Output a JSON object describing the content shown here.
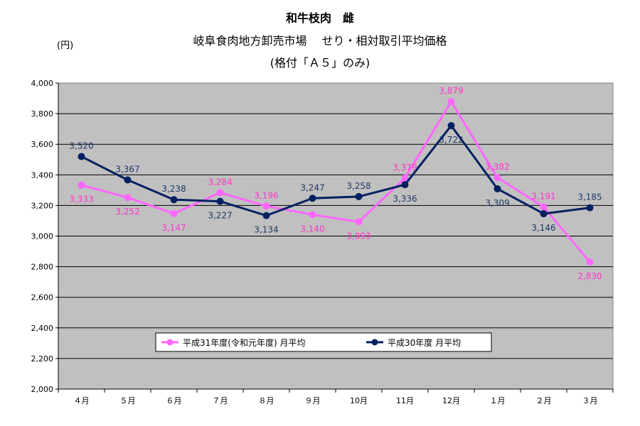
{
  "header": {
    "title": "和牛枝肉　雌",
    "subtitle": "岐阜食肉地方卸売市場　 せり・相対取引平均価格",
    "subtitle2": "(格付「Ａ５」のみ)",
    "unit": "(円)"
  },
  "chart_data": {
    "type": "line",
    "categories": [
      "４月",
      "５月",
      "６月",
      "７月",
      "８月",
      "９月",
      "10月",
      "11月",
      "12月",
      "１月",
      "２月",
      "３月"
    ],
    "ylim": [
      2000,
      4000
    ],
    "yticks": [
      2000,
      2200,
      2400,
      2600,
      2800,
      3000,
      3200,
      3400,
      3600,
      3800,
      4000
    ],
    "ytick_labels": [
      "2,000",
      "2,200",
      "2,400",
      "2,600",
      "2,800",
      "3,000",
      "3,200",
      "3,400",
      "3,600",
      "3,800",
      "4,000"
    ],
    "grid": true,
    "legend_position": "bottom-center",
    "series": [
      {
        "name": "平成31年度(令和元年度) 月平均",
        "color": "#ff66ff",
        "label_color": "#ff33cc",
        "values": [
          3333,
          3252,
          3147,
          3284,
          3196,
          3140,
          3093,
          3379,
          3879,
          3382,
          3191,
          2830
        ],
        "labels": [
          "3,333",
          "3,252",
          "3,147",
          "3,284",
          "3,196",
          "3,140",
          "3,093",
          "3,379",
          "3,879",
          "3,382",
          "3,191",
          "2,830"
        ]
      },
      {
        "name": "平成30年度 月平均",
        "color": "#002060",
        "label_color": "#1f3864",
        "values": [
          3520,
          3367,
          3238,
          3227,
          3134,
          3247,
          3258,
          3336,
          3722,
          3309,
          3146,
          3185
        ],
        "labels": [
          "3,520",
          "3,367",
          "3,238",
          "3,227",
          "3,134",
          "3,247",
          "3,258",
          "3,336",
          "3,722",
          "3,309",
          "3,146",
          "3,185"
        ]
      }
    ]
  }
}
